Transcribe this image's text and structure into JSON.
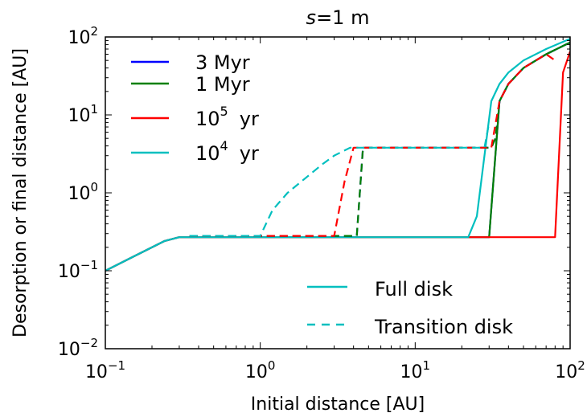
{
  "chart_data": {
    "type": "line",
    "title": "s=1 m",
    "xlabel": "Initial distance [AU]",
    "ylabel": "Desorption or final distance [AU]",
    "xscale": "log",
    "yscale": "log",
    "xlim": [
      0.1,
      100
    ],
    "ylim": [
      0.01,
      100
    ],
    "x_ticks": [
      {
        "base": "10",
        "exp": "−1",
        "value": 0.1
      },
      {
        "base": "10",
        "exp": "0",
        "value": 1
      },
      {
        "base": "10",
        "exp": "1",
        "value": 10
      },
      {
        "base": "10",
        "exp": "2",
        "value": 100
      }
    ],
    "y_ticks": [
      {
        "base": "10",
        "exp": "−2",
        "value": 0.01
      },
      {
        "base": "10",
        "exp": "−1",
        "value": 0.1
      },
      {
        "base": "10",
        "exp": "0",
        "value": 1
      },
      {
        "base": "10",
        "exp": "1",
        "value": 10
      },
      {
        "base": "10",
        "exp": "2",
        "value": 100
      }
    ],
    "legend_ages": {
      "placement": "top-left",
      "entries": [
        {
          "label": "3 Myr",
          "color": "#0000ff"
        },
        {
          "label": "1 Myr",
          "color": "#008000"
        },
        {
          "label": "10",
          "sup": "5",
          "unit": "yr",
          "color": "#ff0000"
        },
        {
          "label": "10",
          "sup": "4",
          "unit": "yr",
          "color": "#00bfbf"
        }
      ]
    },
    "legend_styles": {
      "placement": "bottom-right",
      "entries": [
        {
          "label": "Full disk",
          "dash": "solid",
          "color": "#00bfbf"
        },
        {
          "label": "Transition disk",
          "dash": "dashed",
          "color": "#00bfbf"
        }
      ]
    },
    "series": [
      {
        "age": "3 Myr",
        "disk": "Full disk",
        "color": "#0000ff",
        "dash": "solid",
        "x": [
          0.1,
          0.15,
          0.24,
          0.3,
          0.35,
          30,
          35,
          40,
          50,
          70,
          100
        ],
        "y": [
          0.1,
          0.15,
          0.24,
          0.27,
          0.27,
          0.27,
          15,
          25,
          40,
          60,
          85
        ]
      },
      {
        "age": "1 Myr",
        "disk": "Full disk",
        "color": "#008000",
        "dash": "solid",
        "x": [
          0.1,
          0.15,
          0.24,
          0.3,
          0.35,
          30,
          35,
          40,
          50,
          70,
          100
        ],
        "y": [
          0.1,
          0.15,
          0.24,
          0.27,
          0.27,
          0.27,
          15,
          25,
          40,
          60,
          85
        ]
      },
      {
        "age": "10^5 yr",
        "disk": "Full disk",
        "color": "#ff0000",
        "dash": "solid",
        "x": [
          0.1,
          0.15,
          0.24,
          0.3,
          0.35,
          75,
          80,
          90,
          100
        ],
        "y": [
          0.1,
          0.15,
          0.24,
          0.27,
          0.27,
          0.27,
          0.27,
          35,
          65
        ]
      },
      {
        "age": "10^4 yr",
        "disk": "Full disk",
        "color": "#00bfbf",
        "dash": "solid",
        "x": [
          0.1,
          0.15,
          0.24,
          0.3,
          0.35,
          22,
          25,
          31,
          35,
          40,
          50,
          70,
          100
        ],
        "y": [
          0.1,
          0.15,
          0.24,
          0.27,
          0.27,
          0.27,
          0.5,
          15,
          25,
          35,
          50,
          70,
          95
        ]
      },
      {
        "age": "3 Myr",
        "disk": "Transition disk",
        "color": "#0000ff",
        "dash": "dashed",
        "x": [
          0.35,
          4.2,
          4.6,
          31,
          33,
          35,
          40,
          50,
          70,
          100
        ],
        "y": [
          0.28,
          0.28,
          3.8,
          3.8,
          5,
          15,
          25,
          40,
          60,
          85
        ]
      },
      {
        "age": "1 Myr",
        "disk": "Transition disk",
        "color": "#008000",
        "dash": "dashed",
        "x": [
          0.35,
          4.2,
          4.6,
          31,
          33,
          35,
          40,
          50,
          70,
          100
        ],
        "y": [
          0.28,
          0.28,
          3.8,
          3.8,
          5,
          15,
          25,
          40,
          60,
          85
        ]
      },
      {
        "age": "10^5 yr",
        "disk": "Transition disk",
        "color": "#ff0000",
        "dash": "dashed",
        "x": [
          0.35,
          3.0,
          3.5,
          4.0,
          31,
          35,
          40,
          50,
          70,
          80
        ],
        "y": [
          0.28,
          0.28,
          1.4,
          3.8,
          3.8,
          15,
          25,
          40,
          60,
          50
        ]
      },
      {
        "age": "10^4 yr",
        "disk": "Transition disk",
        "color": "#00bfbf",
        "dash": "dashed",
        "x": [
          0.35,
          1.0,
          1.2,
          1.5,
          2.0,
          2.5,
          3.0,
          3.8,
          4.2,
          28,
          30
        ],
        "y": [
          0.28,
          0.28,
          0.6,
          1.0,
          1.6,
          2.3,
          3.0,
          3.8,
          3.8,
          3.8,
          8
        ]
      }
    ]
  }
}
